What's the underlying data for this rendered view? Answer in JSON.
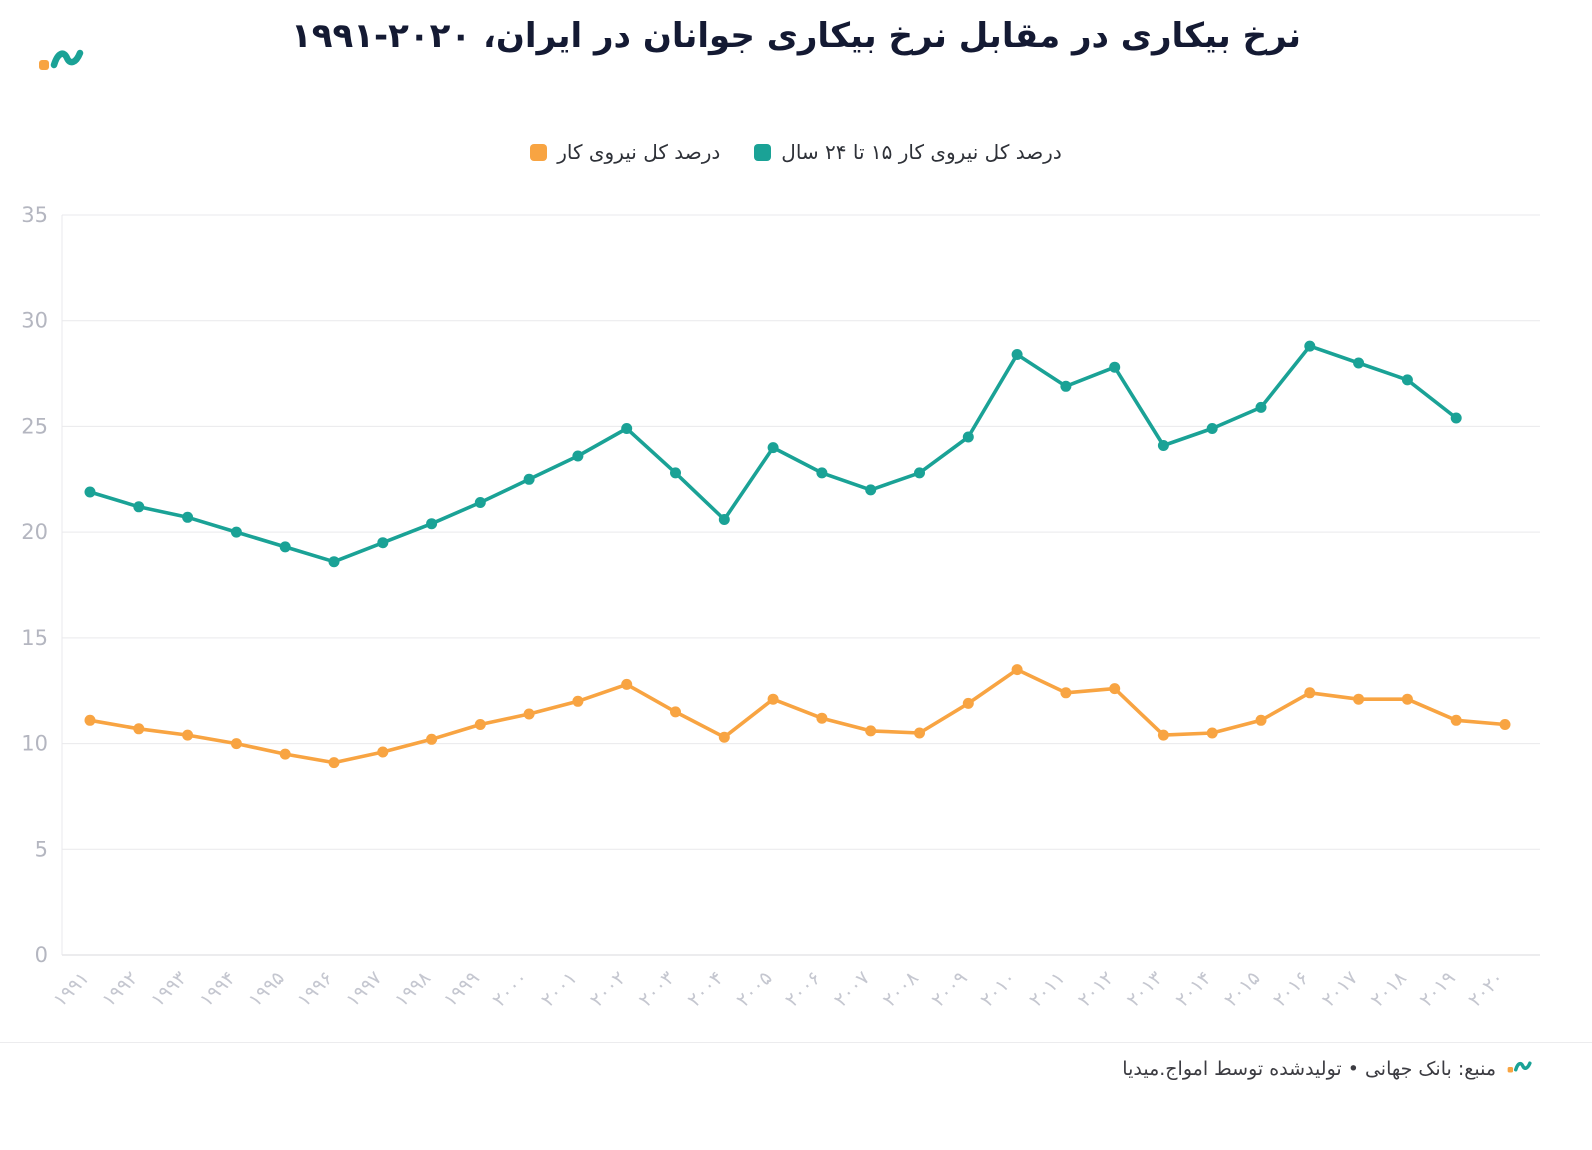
{
  "brand": {
    "logo_icon": "amwaj-media-logo",
    "orange": "#f8a442",
    "teal": "#1aa296"
  },
  "title": "نرخ بیکاری در مقابل نرخ بیکاری جوانان در ایران، ۲۰۲۰-۱۹۹۱",
  "footer": {
    "source_text": "منبع: بانک جهانی • تولیدشده توسط امواج.میدیا",
    "logo_icon": "amwaj-media-logo-small"
  },
  "chart_data": {
    "type": "line",
    "title": "نرخ بیکاری در مقابل نرخ بیکاری جوانان در ایران، ۲۰۲۰-۱۹۹۱",
    "x": [
      1991,
      1992,
      1993,
      1994,
      1995,
      1996,
      1997,
      1998,
      1999,
      2000,
      2001,
      2002,
      2003,
      2004,
      2005,
      2006,
      2007,
      2008,
      2009,
      2010,
      2011,
      2012,
      2013,
      2014,
      2015,
      2016,
      2017,
      2018,
      2019,
      2020
    ],
    "x_tick_labels": [
      "۱۹۹۱",
      "۱۹۹۲",
      "۱۹۹۳",
      "۱۹۹۴",
      "۱۹۹۵",
      "۱۹۹۶",
      "۱۹۹۷",
      "۱۹۹۸",
      "۱۹۹۹",
      "۲۰۰۰",
      "۲۰۰۱",
      "۲۰۰۲",
      "۲۰۰۳",
      "۲۰۰۴",
      "۲۰۰۵",
      "۲۰۰۶",
      "۲۰۰۷",
      "۲۰۰۸",
      "۲۰۰۹",
      "۲۰۱۰",
      "۲۰۱۱",
      "۲۰۱۲",
      "۲۰۱۳",
      "۲۰۱۴",
      "۲۰۱۵",
      "۲۰۱۶",
      "۲۰۱۷",
      "۲۰۱۸",
      "۲۰۱۹",
      "۲۰۲۰"
    ],
    "y_ticks": [
      0,
      5,
      10,
      15,
      20,
      25,
      30,
      35
    ],
    "ylim": [
      0,
      35
    ],
    "grid": true,
    "legend_position": "top-center",
    "series": [
      {
        "name": "درصد کل نیروی کار ۱۵ تا ۲۴ سال",
        "color": "#1aa296",
        "values": [
          21.9,
          21.2,
          20.7,
          20.0,
          19.3,
          18.6,
          19.5,
          20.4,
          21.4,
          22.5,
          23.6,
          24.9,
          22.8,
          20.6,
          24.0,
          22.8,
          22.0,
          22.8,
          24.5,
          28.4,
          26.9,
          27.8,
          24.1,
          24.9,
          25.9,
          28.8,
          28.0,
          27.2,
          25.4,
          null
        ]
      },
      {
        "name": "درصد کل نیروی کار",
        "color": "#f8a442",
        "values": [
          11.1,
          10.7,
          10.4,
          10.0,
          9.5,
          9.1,
          9.6,
          10.2,
          10.9,
          11.4,
          12.0,
          12.8,
          11.5,
          10.3,
          12.1,
          11.2,
          10.6,
          10.5,
          11.9,
          13.5,
          12.4,
          12.6,
          10.4,
          10.5,
          11.1,
          12.4,
          12.1,
          12.1,
          11.1,
          10.9
        ]
      }
    ]
  }
}
